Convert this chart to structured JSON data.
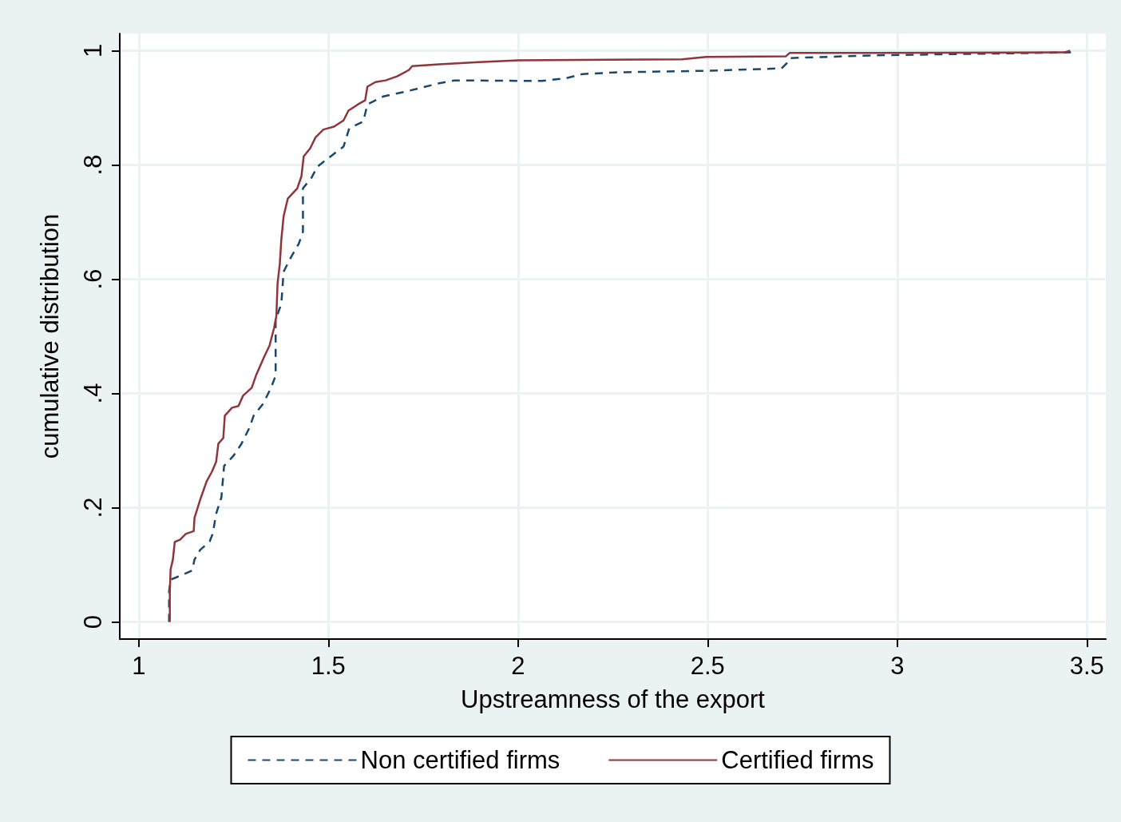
{
  "chart_data": {
    "type": "line",
    "xlabel": "Upstreamness of the export",
    "ylabel": "cumulative distribution",
    "xlim": [
      0.95,
      3.55
    ],
    "xticks": [
      1,
      1.5,
      2,
      2.5,
      3,
      3.5
    ],
    "ylim": [
      -0.03,
      1.03
    ],
    "yticks": [
      {
        "value": 0,
        "label": "0"
      },
      {
        "value": 0.2,
        "label": ".2"
      },
      {
        "value": 0.4,
        "label": ".4"
      },
      {
        "value": 0.6,
        "label": ".6"
      },
      {
        "value": 0.8,
        "label": ".8"
      },
      {
        "value": 1,
        "label": "1"
      }
    ],
    "grid": true,
    "legend": "bottom",
    "marker": "none",
    "series": [
      {
        "name": "Non certified firms",
        "color": "#1a476f",
        "line_style": "dashed",
        "x": [
          1.08,
          1.08,
          1.084,
          1.099,
          1.141,
          1.147,
          1.162,
          1.187,
          1.195,
          1.204,
          1.218,
          1.225,
          1.25,
          1.271,
          1.292,
          1.303,
          1.328,
          1.349,
          1.361,
          1.361,
          1.376,
          1.382,
          1.401,
          1.422,
          1.433,
          1.433,
          1.456,
          1.471,
          1.498,
          1.54,
          1.555,
          1.592,
          1.603,
          1.645,
          1.708,
          1.792,
          1.834,
          2.063,
          2.128,
          2.17,
          2.254,
          2.506,
          2.695,
          2.71,
          2.716,
          2.947,
          3.458
        ],
        "values": [
          0,
          0.053,
          0.074,
          0.078,
          0.09,
          0.109,
          0.126,
          0.141,
          0.154,
          0.189,
          0.218,
          0.273,
          0.291,
          0.312,
          0.34,
          0.361,
          0.382,
          0.41,
          0.431,
          0.529,
          0.557,
          0.613,
          0.638,
          0.662,
          0.683,
          0.759,
          0.778,
          0.797,
          0.811,
          0.832,
          0.864,
          0.876,
          0.906,
          0.92,
          0.929,
          0.943,
          0.948,
          0.947,
          0.952,
          0.959,
          0.962,
          0.965,
          0.969,
          0.979,
          0.987,
          0.992,
          0.997
        ]
      },
      {
        "name": "Certified firms",
        "color": "#90353b",
        "line_style": "solid",
        "x": [
          1.082,
          1.082,
          1.084,
          1.09,
          1.095,
          1.109,
          1.124,
          1.145,
          1.147,
          1.162,
          1.179,
          1.193,
          1.204,
          1.21,
          1.223,
          1.227,
          1.246,
          1.263,
          1.275,
          1.298,
          1.309,
          1.33,
          1.345,
          1.357,
          1.363,
          1.366,
          1.372,
          1.376,
          1.382,
          1.393,
          1.418,
          1.429,
          1.435,
          1.452,
          1.466,
          1.487,
          1.515,
          1.54,
          1.553,
          1.578,
          1.597,
          1.603,
          1.624,
          1.651,
          1.681,
          1.712,
          1.721,
          1.792,
          1.897,
          2.002,
          2.433,
          2.496,
          2.706,
          2.716,
          2.947,
          3.441,
          3.456
        ],
        "values": [
          0,
          0.053,
          0.092,
          0.109,
          0.14,
          0.144,
          0.154,
          0.159,
          0.182,
          0.214,
          0.246,
          0.263,
          0.28,
          0.312,
          0.322,
          0.361,
          0.375,
          0.378,
          0.396,
          0.41,
          0.431,
          0.463,
          0.484,
          0.515,
          0.536,
          0.592,
          0.627,
          0.669,
          0.71,
          0.741,
          0.759,
          0.78,
          0.815,
          0.829,
          0.848,
          0.862,
          0.867,
          0.878,
          0.895,
          0.906,
          0.913,
          0.937,
          0.945,
          0.948,
          0.955,
          0.966,
          0.973,
          0.976,
          0.98,
          0.983,
          0.985,
          0.989,
          0.99,
          0.996,
          0.996,
          0.997,
          1.0
        ]
      }
    ]
  }
}
